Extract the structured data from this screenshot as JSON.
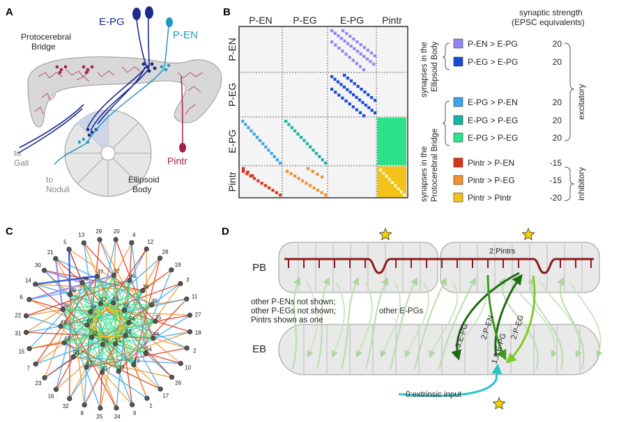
{
  "panels": {
    "a": {
      "label": "A",
      "protocerebral_bridge": "Protocerebral\nBridge",
      "epg": "E-PG",
      "pen": "P-EN",
      "pintr": "Pintr",
      "to_gall": "to\nGall",
      "to_noduli": "to\nNoduli",
      "ellipsoid_body": "Ellipsoid\nBody",
      "colors": {
        "epg": "#1a2a8c",
        "pen": "#2596be",
        "pintr": "#a31f4a",
        "bridge_fill": "#d8d8d8",
        "branch": "#b0304a"
      }
    },
    "b": {
      "label": "B",
      "col_headers": [
        "P-EN",
        "P-EG",
        "E-PG",
        "Pintr"
      ],
      "row_headers": [
        "P-EN",
        "P-EG",
        "E-PG",
        "Pintr"
      ],
      "strength_title": "synaptic strength\n(EPSC equivalents)",
      "group_eb": "synapses in the\nEllipsoid Body",
      "group_pb": "synapses in the\nProtocerebral Bridge",
      "excitatory": "excitatory",
      "inhibitory": "inhibitory",
      "legend": [
        {
          "label": "P-EN > E-PG",
          "value": "20",
          "color": "#8f86f0"
        },
        {
          "label": "P-EG > E-PG",
          "value": "20",
          "color": "#1a49d6"
        },
        {
          "label": "E-PG > P-EN",
          "value": "20",
          "color": "#3aa6e8"
        },
        {
          "label": "E-PG > P-EG",
          "value": "20",
          "color": "#17b5a4"
        },
        {
          "label": "E-PG > P-EG",
          "value": "20",
          "color": "#2be28a"
        },
        {
          "label": "Pintr > P-EN",
          "value": "-15",
          "color": "#d8361a"
        },
        {
          "label": "Pintr > P-EG",
          "value": "-15",
          "color": "#f0922e"
        },
        {
          "label": "Pintr > Pintr",
          "value": "-20",
          "color": "#f2c21a"
        }
      ]
    },
    "c": {
      "label": "C",
      "nodes": [
        {
          "id": "29",
          "group": 0
        },
        {
          "id": "20",
          "group": 0
        },
        {
          "id": "4",
          "group": 0
        },
        {
          "id": "12",
          "group": 0
        },
        {
          "id": "28",
          "group": 0
        },
        {
          "id": "19",
          "group": 0
        },
        {
          "id": "3",
          "group": 0
        },
        {
          "id": "11",
          "group": 0
        },
        {
          "id": "27",
          "group": 0
        },
        {
          "id": "18",
          "group": 0
        },
        {
          "id": "2",
          "group": 0
        },
        {
          "id": "10",
          "group": 0
        },
        {
          "id": "26",
          "group": 0
        },
        {
          "id": "17",
          "group": 0
        },
        {
          "id": "1",
          "group": 0
        },
        {
          "id": "9",
          "group": 0
        },
        {
          "id": "24",
          "group": 0
        },
        {
          "id": "25",
          "group": 0
        },
        {
          "id": "8",
          "group": 0
        },
        {
          "id": "32",
          "group": 0
        },
        {
          "id": "16",
          "group": 0
        },
        {
          "id": "23",
          "group": 0
        },
        {
          "id": "7",
          "group": 0
        },
        {
          "id": "15",
          "group": 0
        },
        {
          "id": "31",
          "group": 0
        },
        {
          "id": "22",
          "group": 0
        },
        {
          "id": "6",
          "group": 0
        },
        {
          "id": "14",
          "group": 0
        },
        {
          "id": "30",
          "group": 0
        },
        {
          "id": "21",
          "group": 0
        },
        {
          "id": "5",
          "group": 0
        },
        {
          "id": "13",
          "group": 0
        },
        {
          "id": "37",
          "group": 1
        },
        {
          "id": "46",
          "group": 1
        },
        {
          "id": "36",
          "group": 1
        },
        {
          "id": "45",
          "group": 1
        },
        {
          "id": "35",
          "group": 1
        },
        {
          "id": "44",
          "group": 1
        },
        {
          "id": "34",
          "group": 1
        },
        {
          "id": "43",
          "group": 1
        },
        {
          "id": "33",
          "group": 1
        },
        {
          "id": "41",
          "group": 1
        },
        {
          "id": "42",
          "group": 1
        },
        {
          "id": "50",
          "group": 1
        },
        {
          "id": "40",
          "group": 1
        },
        {
          "id": "49",
          "group": 1
        },
        {
          "id": "39",
          "group": 1
        },
        {
          "id": "48",
          "group": 1
        },
        {
          "id": "38",
          "group": 1
        },
        {
          "id": "47",
          "group": 1
        },
        {
          "id": "56",
          "group": 2
        },
        {
          "id": "55",
          "group": 2
        },
        {
          "id": "54",
          "group": 2
        },
        {
          "id": "53",
          "group": 2
        },
        {
          "id": "51",
          "group": 2
        },
        {
          "id": "59",
          "group": 2
        },
        {
          "id": "52",
          "group": 2
        },
        {
          "id": "60",
          "group": 2
        },
        {
          "id": "58",
          "group": 2
        },
        {
          "id": "57",
          "group": 2
        }
      ]
    },
    "d": {
      "label": "D",
      "pb": "PB",
      "eb": "EB",
      "pintrs": "2:Pintrs",
      "note_pen": "other P-ENs not shown;",
      "note_peg": "other P-EGs not shown;",
      "note_pintr": "Pintrs shown as one",
      "other_epgs": "other E-PGs",
      "arrow_3epg": "3:E-PG",
      "arrow_2pen": "2:P-EN",
      "arrow_2peg": "2:P-EG",
      "arrow_13epg": "1,3:E-PG",
      "extrinsic": "0:extrinsic input",
      "colors": {
        "pintr": "#8b1a1a",
        "star": "#f5d000",
        "epg_dark": "#1d6b12",
        "pen": "#3e9a1e",
        "peg": "#7ecb2a",
        "input": "#23c6c8"
      }
    }
  }
}
